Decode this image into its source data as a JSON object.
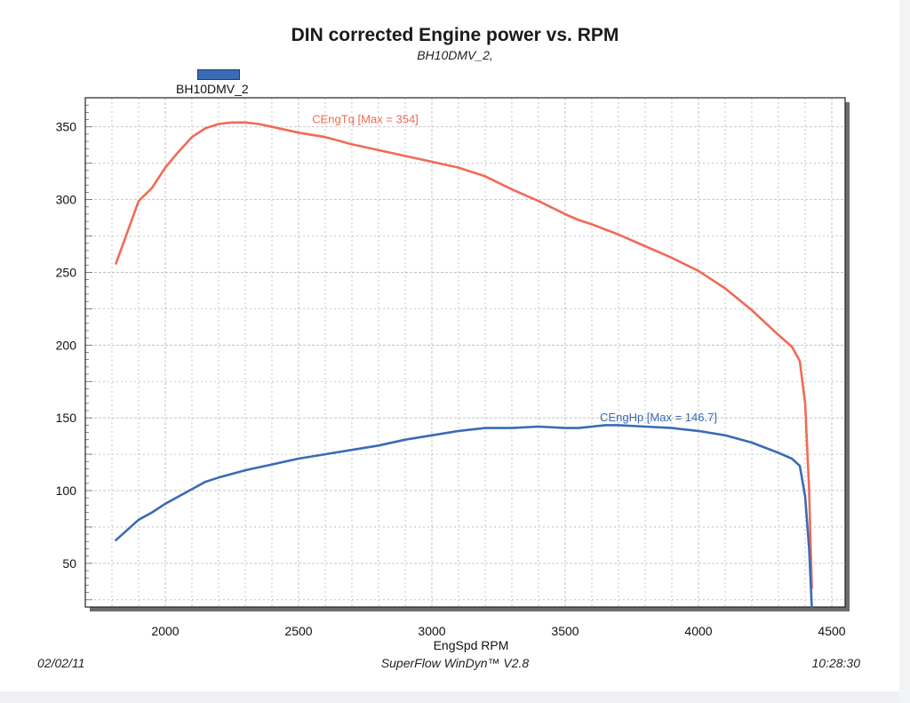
{
  "header": {
    "title": "DIN corrected Engine power vs. RPM",
    "subtitle": "BH10DMV_2,"
  },
  "legend": {
    "label": "BH10DMV_2",
    "color": "#3a6bb5"
  },
  "footer": {
    "date": "02/02/11",
    "software": "SuperFlow WinDyn™ V2.8",
    "time": "10:28:30"
  },
  "chart_data": {
    "type": "line",
    "title": "DIN corrected Engine power vs. RPM",
    "xlabel": "EngSpd  RPM",
    "ylabel": "",
    "xlim": [
      1700,
      4550
    ],
    "ylim": [
      20,
      370
    ],
    "xticks": [
      2000,
      2500,
      3000,
      3500,
      4000,
      4500
    ],
    "yticks": [
      50,
      100,
      150,
      200,
      250,
      300,
      350
    ],
    "grid": true,
    "series": [
      {
        "name": "CEngTq [Max = 354]",
        "color": "#f26a55",
        "x": [
          1815,
          1900,
          1950,
          2000,
          2050,
          2100,
          2150,
          2200,
          2250,
          2300,
          2350,
          2400,
          2500,
          2600,
          2700,
          2800,
          2900,
          3000,
          3100,
          3200,
          3300,
          3400,
          3500,
          3550,
          3600,
          3700,
          3800,
          3900,
          4000,
          4100,
          4200,
          4300,
          4350,
          4380,
          4400,
          4415,
          4425
        ],
        "y": [
          256,
          299,
          308,
          322,
          333,
          343,
          349,
          352,
          353,
          353,
          352,
          350,
          346,
          343,
          338,
          334,
          330,
          326,
          322,
          316,
          307,
          299,
          290,
          286,
          283,
          276,
          268,
          260,
          251,
          239,
          224,
          207,
          199,
          189,
          160,
          100,
          33
        ]
      },
      {
        "name": "CEngHp [Max = 146.7]",
        "color": "#3a6bb5",
        "x": [
          1815,
          1900,
          1950,
          2000,
          2050,
          2100,
          2150,
          2200,
          2300,
          2400,
          2500,
          2600,
          2700,
          2800,
          2900,
          3000,
          3100,
          3200,
          3300,
          3400,
          3500,
          3550,
          3600,
          3650,
          3700,
          3800,
          3900,
          4000,
          4100,
          4200,
          4300,
          4350,
          4380,
          4400,
          4415,
          4425
        ],
        "y": [
          66,
          80,
          85,
          91,
          96,
          101,
          106,
          109,
          114,
          118,
          122,
          125,
          128,
          131,
          135,
          138,
          141,
          143,
          143,
          144,
          143,
          143,
          144,
          145,
          145,
          144,
          143,
          141,
          138,
          133,
          126,
          122,
          117,
          96,
          60,
          20
        ]
      }
    ]
  }
}
